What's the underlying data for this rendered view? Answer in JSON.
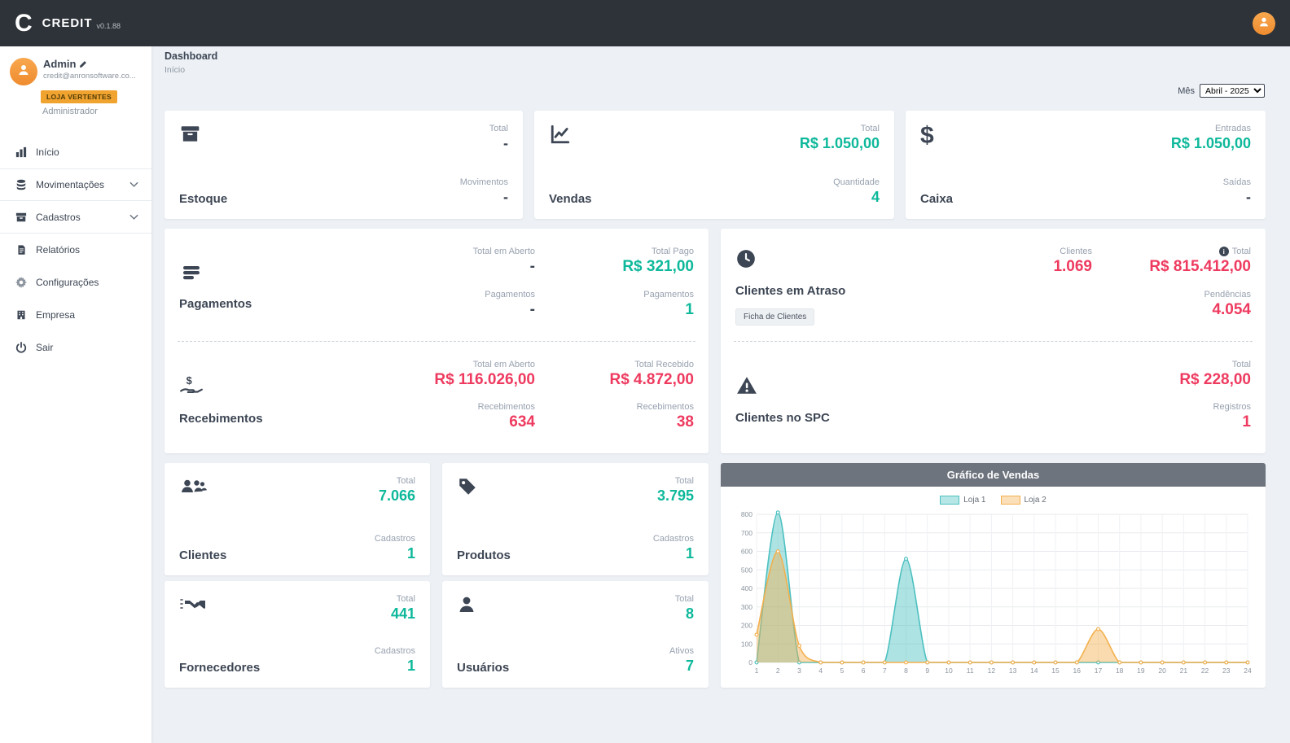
{
  "colors": {
    "positive": "#0eb89b",
    "negative": "#ee3a5f",
    "accent_orange": "#f0a32f",
    "topbar": "#2e3339",
    "chart_header": "#6d747d"
  },
  "app": {
    "logo_letter": "C",
    "name": "CREDIT",
    "version": "v0.1.88"
  },
  "user": {
    "name": "Admin",
    "email": "credit@anronsoftware.co...",
    "store": "LOJA VERTENTES",
    "role": "Administrador"
  },
  "sidebar": {
    "items": [
      {
        "label": "Início",
        "icon": "columns-icon"
      },
      {
        "label": "Movimentações",
        "icon": "coins-icon",
        "expandable": true
      },
      {
        "label": "Cadastros",
        "icon": "archive-icon",
        "expandable": true
      },
      {
        "label": "Relatórios",
        "icon": "report-icon"
      },
      {
        "label": "Configurações",
        "icon": "gear-icon"
      },
      {
        "label": "Empresa",
        "icon": "building-icon"
      },
      {
        "label": "Sair",
        "icon": "power-icon"
      }
    ]
  },
  "breadcrumb": {
    "title": "Dashboard",
    "subtitle": "Início"
  },
  "filters": {
    "month_label": "Mês",
    "month_value": "Abril - 2025"
  },
  "cards": {
    "estoque": {
      "title": "Estoque",
      "stats": [
        {
          "label": "Total",
          "value": "-"
        },
        {
          "label": "Movimentos",
          "value": "-"
        }
      ]
    },
    "vendas": {
      "title": "Vendas",
      "stats": [
        {
          "label": "Total",
          "value": "R$ 1.050,00"
        },
        {
          "label": "Quantidade",
          "value": "4"
        }
      ]
    },
    "caixa": {
      "title": "Caixa",
      "stats": [
        {
          "label": "Entradas",
          "value": "R$ 1.050,00"
        },
        {
          "label": "Saídas",
          "value": "-"
        }
      ]
    },
    "pagamentos": {
      "title": "Pagamentos",
      "col1": [
        {
          "label": "Total em Aberto",
          "value": "-"
        },
        {
          "label": "Pagamentos",
          "value": "-"
        }
      ],
      "col2": [
        {
          "label": "Total Pago",
          "value": "R$ 321,00"
        },
        {
          "label": "Pagamentos",
          "value": "1"
        }
      ]
    },
    "recebimentos": {
      "title": "Recebimentos",
      "col1": [
        {
          "label": "Total em Aberto",
          "value": "R$ 116.026,00"
        },
        {
          "label": "Recebimentos",
          "value": "634"
        }
      ],
      "col2": [
        {
          "label": "Total Recebido",
          "value": "R$ 4.872,00"
        },
        {
          "label": "Recebimentos",
          "value": "38"
        }
      ]
    },
    "clientes_atraso": {
      "title": "Clientes em Atraso",
      "button": "Ficha de Clientes",
      "col1": [
        {
          "label": "Clientes",
          "value": "1.069"
        }
      ],
      "col2": [
        {
          "label": "Total",
          "value": "R$ 815.412,00"
        },
        {
          "label": "Pendências",
          "value": "4.054"
        }
      ]
    },
    "clientes_spc": {
      "title": "Clientes no SPC",
      "col2": [
        {
          "label": "Total",
          "value": "R$ 228,00"
        },
        {
          "label": "Registros",
          "value": "1"
        }
      ]
    },
    "clientes": {
      "title": "Clientes",
      "stats": [
        {
          "label": "Total",
          "value": "7.066"
        },
        {
          "label": "Cadastros",
          "value": "1"
        }
      ]
    },
    "produtos": {
      "title": "Produtos",
      "stats": [
        {
          "label": "Total",
          "value": "3.795"
        },
        {
          "label": "Cadastros",
          "value": "1"
        }
      ]
    },
    "fornecedores": {
      "title": "Fornecedores",
      "stats": [
        {
          "label": "Total",
          "value": "441"
        },
        {
          "label": "Cadastros",
          "value": "1"
        }
      ]
    },
    "usuarios": {
      "title": "Usuários",
      "stats": [
        {
          "label": "Total",
          "value": "8"
        },
        {
          "label": "Ativos",
          "value": "7"
        }
      ]
    }
  },
  "chart_data": {
    "type": "line",
    "title": "Gráfico de Vendas",
    "x": [
      1,
      2,
      3,
      4,
      5,
      6,
      7,
      8,
      9,
      10,
      11,
      12,
      13,
      14,
      15,
      16,
      17,
      18,
      19,
      20,
      21,
      22,
      23,
      24
    ],
    "series": [
      {
        "name": "Loja 1",
        "color": "#4cc0c0",
        "values": [
          0,
          810,
          0,
          0,
          0,
          0,
          0,
          560,
          0,
          0,
          0,
          0,
          0,
          0,
          0,
          0,
          0,
          0,
          0,
          0,
          0,
          0,
          0,
          0
        ]
      },
      {
        "name": "Loja 2",
        "color": "#f3b04e",
        "values": [
          150,
          600,
          90,
          0,
          0,
          0,
          0,
          0,
          0,
          0,
          0,
          0,
          0,
          0,
          0,
          0,
          180,
          0,
          0,
          0,
          0,
          0,
          0,
          0
        ]
      }
    ],
    "ylim": [
      0,
      800
    ],
    "ytick_step": 100,
    "grid": true,
    "legend_position": "top",
    "area": true
  }
}
